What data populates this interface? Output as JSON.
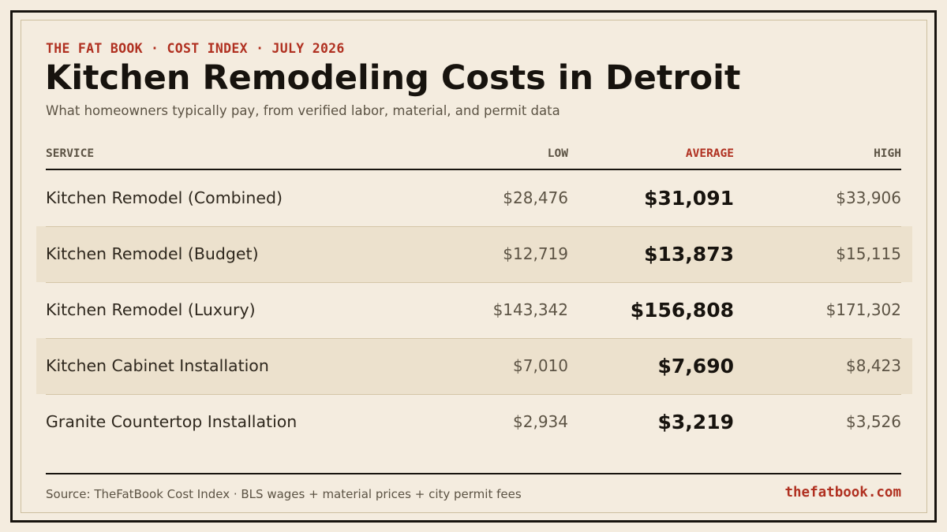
{
  "header": {
    "kicker": "THE FAT BOOK · COST INDEX · JULY 2026",
    "title": "Kitchen Remodeling Costs in Detroit",
    "subtitle": "What homeowners typically pay, from verified labor, material, and permit data"
  },
  "table": {
    "columns": {
      "service": "SERVICE",
      "low": "LOW",
      "average": "AVERAGE",
      "high": "HIGH"
    },
    "rows": [
      {
        "service": "Kitchen Remodel (Combined)",
        "low": "$28,476",
        "average": "$31,091",
        "high": "$33,906"
      },
      {
        "service": "Kitchen Remodel (Budget)",
        "low": "$12,719",
        "average": "$13,873",
        "high": "$15,115"
      },
      {
        "service": "Kitchen Remodel (Luxury)",
        "low": "$143,342",
        "average": "$156,808",
        "high": "$171,302"
      },
      {
        "service": "Kitchen Cabinet Installation",
        "low": "$7,010",
        "average": "$7,690",
        "high": "$8,423"
      },
      {
        "service": "Granite Countertop Installation",
        "low": "$2,934",
        "average": "$3,219",
        "high": "$3,526"
      }
    ]
  },
  "footer": {
    "source": "Source: TheFatBook Cost Index · BLS wages + material prices + city permit fees",
    "brand": "thefatbook.com"
  },
  "colors": {
    "background": "#f4ecdf",
    "accent": "#b03020",
    "ink": "#17130e",
    "row_shade": "#ece1cd"
  }
}
